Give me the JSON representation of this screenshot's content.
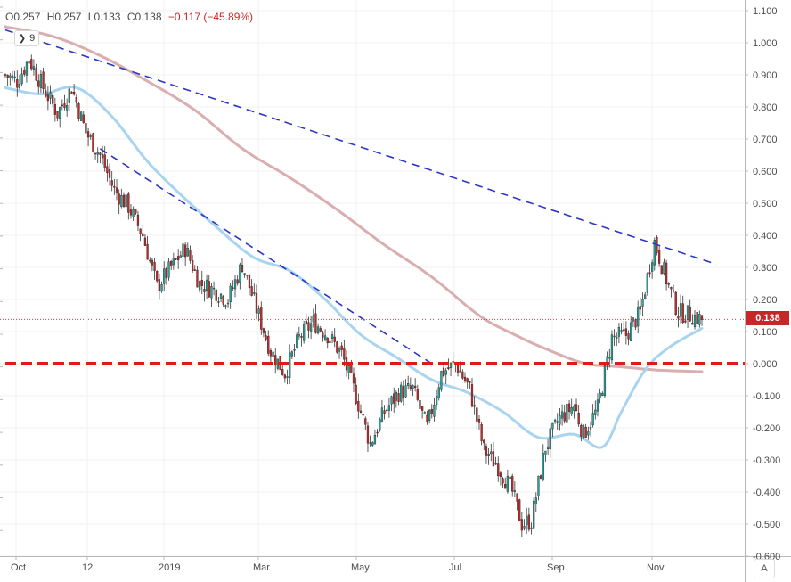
{
  "header": {
    "open": "O0.257",
    "high": "H0.257",
    "low": "L0.133",
    "close": "C0.138",
    "change": "−0.117 (−45.89%)",
    "indicator_count": "9"
  },
  "last_price_label": "0.138",
  "auto_scale_label": "A",
  "colors": {
    "up": "#26a69a",
    "down": "#c62828",
    "ma_fast": "#a8d4f0",
    "ma_slow": "#d9aeb0",
    "trendline": "#2b36c9",
    "zero_line": "#e0191d",
    "grid": "#f0f0f0"
  },
  "chart_data": {
    "type": "candlestick",
    "x_tick_labels": [
      "Oct",
      "12",
      "2019",
      "Mar",
      "May",
      "Jul",
      "Sep",
      "Nov"
    ],
    "y_tick_labels": [
      "1.100",
      "1.000",
      "0.900",
      "0.800",
      "0.700",
      "0.600",
      "0.500",
      "0.400",
      "0.300",
      "0.200",
      "0.100",
      "0.000",
      "-0.100",
      "-0.200",
      "-0.300",
      "-0.400",
      "-0.500",
      "-0.600"
    ],
    "y_range": [
      -0.62,
      1.12
    ],
    "last_price": 0.138,
    "close_path": [
      [
        0,
        0.9
      ],
      [
        5,
        0.88
      ],
      [
        10,
        0.95
      ],
      [
        16,
        0.86
      ],
      [
        22,
        0.78
      ],
      [
        28,
        0.86
      ],
      [
        34,
        0.72
      ],
      [
        40,
        0.65
      ],
      [
        46,
        0.54
      ],
      [
        52,
        0.49
      ],
      [
        58,
        0.4
      ],
      [
        64,
        0.24
      ],
      [
        70,
        0.3
      ],
      [
        76,
        0.36
      ],
      [
        82,
        0.25
      ],
      [
        88,
        0.23
      ],
      [
        94,
        0.2
      ],
      [
        100,
        0.31
      ],
      [
        106,
        0.17
      ],
      [
        112,
        0.04
      ],
      [
        118,
        -0.03
      ],
      [
        124,
        0.08
      ],
      [
        130,
        0.13
      ],
      [
        136,
        0.09
      ],
      [
        142,
        0.03
      ],
      [
        148,
        -0.1
      ],
      [
        154,
        -0.25
      ],
      [
        160,
        -0.15
      ],
      [
        166,
        -0.09
      ],
      [
        172,
        -0.08
      ],
      [
        178,
        -0.2
      ],
      [
        184,
        -0.03
      ],
      [
        190,
        0.0
      ],
      [
        196,
        -0.08
      ],
      [
        202,
        -0.27
      ],
      [
        208,
        -0.32
      ],
      [
        214,
        -0.4
      ],
      [
        218,
        -0.5
      ],
      [
        222,
        -0.49
      ],
      [
        228,
        -0.26
      ],
      [
        234,
        -0.17
      ],
      [
        240,
        -0.13
      ],
      [
        244,
        -0.22
      ],
      [
        250,
        -0.14
      ],
      [
        256,
        0.08
      ],
      [
        262,
        0.09
      ],
      [
        268,
        0.16
      ],
      [
        274,
        0.38
      ],
      [
        280,
        0.24
      ],
      [
        284,
        0.16
      ],
      [
        290,
        0.15
      ],
      [
        294,
        0.138
      ]
    ],
    "bars_count": 295,
    "series": [
      {
        "kind": "moving-average-fast",
        "points": [
          [
            0,
            0.86
          ],
          [
            15,
            0.84
          ],
          [
            30,
            0.86
          ],
          [
            45,
            0.77
          ],
          [
            60,
            0.63
          ],
          [
            75,
            0.52
          ],
          [
            90,
            0.42
          ],
          [
            105,
            0.33
          ],
          [
            120,
            0.29
          ],
          [
            135,
            0.2
          ],
          [
            150,
            0.09
          ],
          [
            165,
            0.02
          ],
          [
            180,
            -0.05
          ],
          [
            195,
            -0.09
          ],
          [
            210,
            -0.15
          ],
          [
            225,
            -0.23
          ],
          [
            240,
            -0.22
          ],
          [
            252,
            -0.26
          ],
          [
            260,
            -0.15
          ],
          [
            270,
            -0.02
          ],
          [
            280,
            0.05
          ],
          [
            294,
            0.11
          ]
        ]
      },
      {
        "kind": "moving-average-slow",
        "points": [
          [
            0,
            1.05
          ],
          [
            20,
            1.02
          ],
          [
            40,
            0.96
          ],
          [
            60,
            0.88
          ],
          [
            80,
            0.79
          ],
          [
            100,
            0.67
          ],
          [
            120,
            0.58
          ],
          [
            140,
            0.48
          ],
          [
            160,
            0.37
          ],
          [
            180,
            0.27
          ],
          [
            200,
            0.15
          ],
          [
            215,
            0.09
          ],
          [
            230,
            0.04
          ],
          [
            245,
            0.0
          ],
          [
            260,
            -0.01
          ],
          [
            275,
            -0.02
          ],
          [
            294,
            -0.025
          ]
        ]
      }
    ],
    "trendlines": [
      {
        "style": "dashed",
        "from": [
          0,
          1.04
        ],
        "to": [
          300,
          0.31
        ]
      },
      {
        "style": "dashed",
        "from": [
          40,
          0.67
        ],
        "to": [
          180,
          0.0
        ]
      },
      {
        "style": "dashed-thick",
        "from": [
          0,
          0.0
        ],
        "to": [
          310,
          0.0
        ]
      }
    ]
  }
}
